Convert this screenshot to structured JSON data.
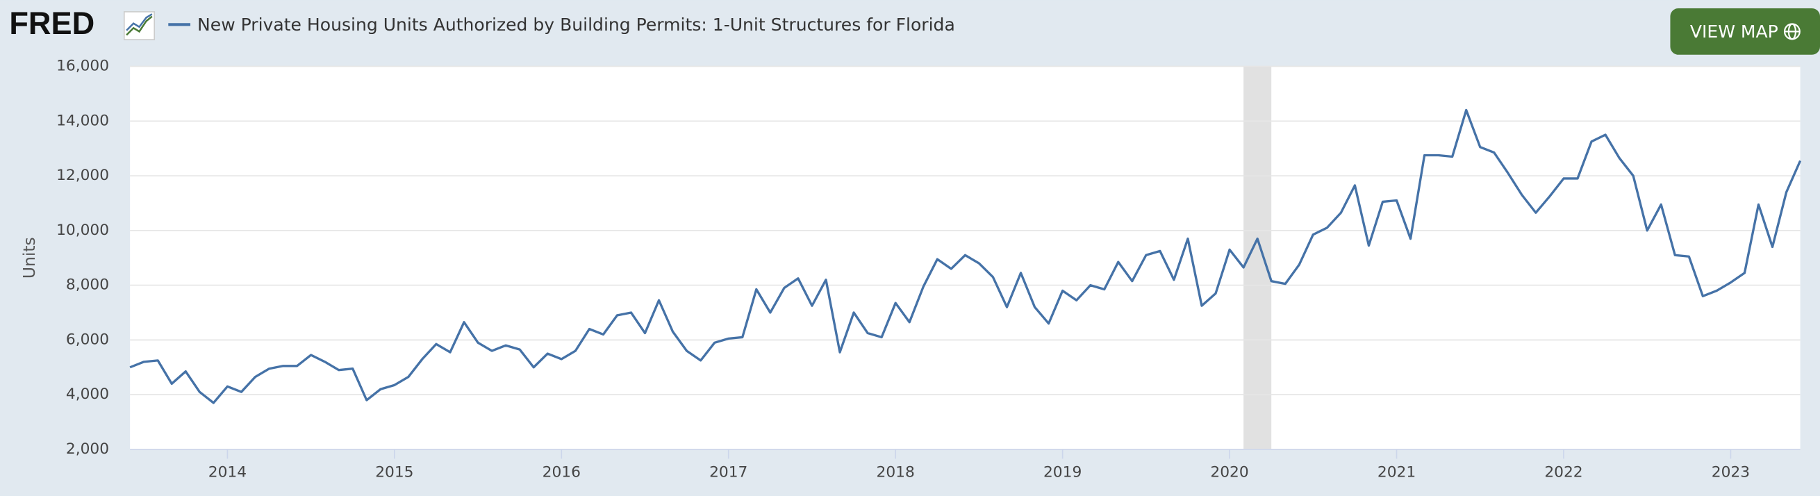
{
  "page": {
    "logo": "FRED",
    "button": "VIEW MAP"
  },
  "chart_data": {
    "type": "line",
    "title": "New Private Housing Units Authorized by Building Permits: 1-Unit Structures for Florida",
    "y_label": "Units",
    "x": [
      "2013-06",
      "2013-07",
      "2013-08",
      "2013-09",
      "2013-10",
      "2013-11",
      "2013-12",
      "2014-01",
      "2014-02",
      "2014-03",
      "2014-04",
      "2014-05",
      "2014-06",
      "2014-07",
      "2014-08",
      "2014-09",
      "2014-10",
      "2014-11",
      "2014-12",
      "2015-01",
      "2015-02",
      "2015-03",
      "2015-04",
      "2015-05",
      "2015-06",
      "2015-07",
      "2015-08",
      "2015-09",
      "2015-10",
      "2015-11",
      "2015-12",
      "2016-01",
      "2016-02",
      "2016-03",
      "2016-04",
      "2016-05",
      "2016-06",
      "2016-07",
      "2016-08",
      "2016-09",
      "2016-10",
      "2016-11",
      "2016-12",
      "2017-01",
      "2017-02",
      "2017-03",
      "2017-04",
      "2017-05",
      "2017-06",
      "2017-07",
      "2017-08",
      "2017-09",
      "2017-10",
      "2017-11",
      "2017-12",
      "2018-01",
      "2018-02",
      "2018-03",
      "2018-04",
      "2018-05",
      "2018-06",
      "2018-07",
      "2018-08",
      "2018-09",
      "2018-10",
      "2018-11",
      "2018-12",
      "2019-01",
      "2019-02",
      "2019-03",
      "2019-04",
      "2019-05",
      "2019-06",
      "2019-07",
      "2019-08",
      "2019-09",
      "2019-10",
      "2019-11",
      "2019-12",
      "2020-01",
      "2020-02",
      "2020-03",
      "2020-04",
      "2020-05",
      "2020-06",
      "2020-07",
      "2020-08",
      "2020-09",
      "2020-10",
      "2020-11",
      "2020-12",
      "2021-01",
      "2021-02",
      "2021-03",
      "2021-04",
      "2021-05",
      "2021-06",
      "2021-07",
      "2021-08",
      "2021-09",
      "2021-10",
      "2021-11",
      "2021-12",
      "2022-01",
      "2022-02",
      "2022-03",
      "2022-04",
      "2022-05",
      "2022-06",
      "2022-07",
      "2022-08",
      "2022-09",
      "2022-10",
      "2022-11",
      "2022-12",
      "2023-01",
      "2023-02",
      "2023-03",
      "2023-04",
      "2023-05",
      "2023-06"
    ],
    "series": [
      {
        "name": "New Private Housing Units Authorized by Building Permits: 1-Unit Structures for Florida",
        "color": "#4572a7",
        "values": [
          5000,
          5200,
          5250,
          4400,
          4850,
          4100,
          3700,
          4300,
          4100,
          4650,
          4950,
          5050,
          5050,
          5450,
          5200,
          4900,
          4950,
          3800,
          4200,
          4350,
          4650,
          5300,
          5850,
          5550,
          6650,
          5900,
          5600,
          5800,
          5650,
          5000,
          5500,
          5300,
          5600,
          6400,
          6200,
          6900,
          7000,
          6250,
          7450,
          6300,
          5600,
          5250,
          5900,
          6050,
          6100,
          7850,
          7000,
          7900,
          8250,
          7250,
          8200,
          5550,
          7000,
          6250,
          6100,
          7350,
          6650,
          7950,
          8950,
          8600,
          9100,
          8800,
          8300,
          7200,
          8450,
          7200,
          6600,
          7800,
          7450,
          8000,
          7850,
          8850,
          8150,
          9100,
          9250,
          8200,
          9700,
          7250,
          7700,
          9300,
          8650,
          9700,
          8150,
          8050,
          8750,
          9850,
          10100,
          10650,
          11650,
          9450,
          11050,
          11100,
          9700,
          12750,
          12750,
          12700,
          14400,
          13050,
          12850,
          12100,
          11300,
          10650,
          11250,
          11900,
          11900,
          13250,
          13500,
          12650,
          12000,
          10000,
          10950,
          9100,
          9050,
          7600,
          7800,
          8100,
          8450,
          10950,
          9400,
          11400,
          12550
        ]
      }
    ],
    "xlim": [
      "2013-06",
      "2023-06"
    ],
    "xticks": [
      {
        "value": "2014-01",
        "label": "2014"
      },
      {
        "value": "2015-01",
        "label": "2015"
      },
      {
        "value": "2016-01",
        "label": "2016"
      },
      {
        "value": "2017-01",
        "label": "2017"
      },
      {
        "value": "2018-01",
        "label": "2018"
      },
      {
        "value": "2019-01",
        "label": "2019"
      },
      {
        "value": "2020-01",
        "label": "2020"
      },
      {
        "value": "2021-01",
        "label": "2021"
      },
      {
        "value": "2022-01",
        "label": "2022"
      },
      {
        "value": "2023-01",
        "label": "2023"
      }
    ],
    "ylim": [
      2000,
      16000
    ],
    "yticks": [
      {
        "value": 2000,
        "label": "2,000"
      },
      {
        "value": 4000,
        "label": "4,000"
      },
      {
        "value": 6000,
        "label": "6,000"
      },
      {
        "value": 8000,
        "label": "8,000"
      },
      {
        "value": 10000,
        "label": "10,000"
      },
      {
        "value": 12000,
        "label": "12,000"
      },
      {
        "value": 14000,
        "label": "14,000"
      },
      {
        "value": 16000,
        "label": "16,000"
      }
    ],
    "shaded_ranges": [
      {
        "start": "2020-02",
        "end": "2020-04"
      }
    ],
    "grid": true
  }
}
